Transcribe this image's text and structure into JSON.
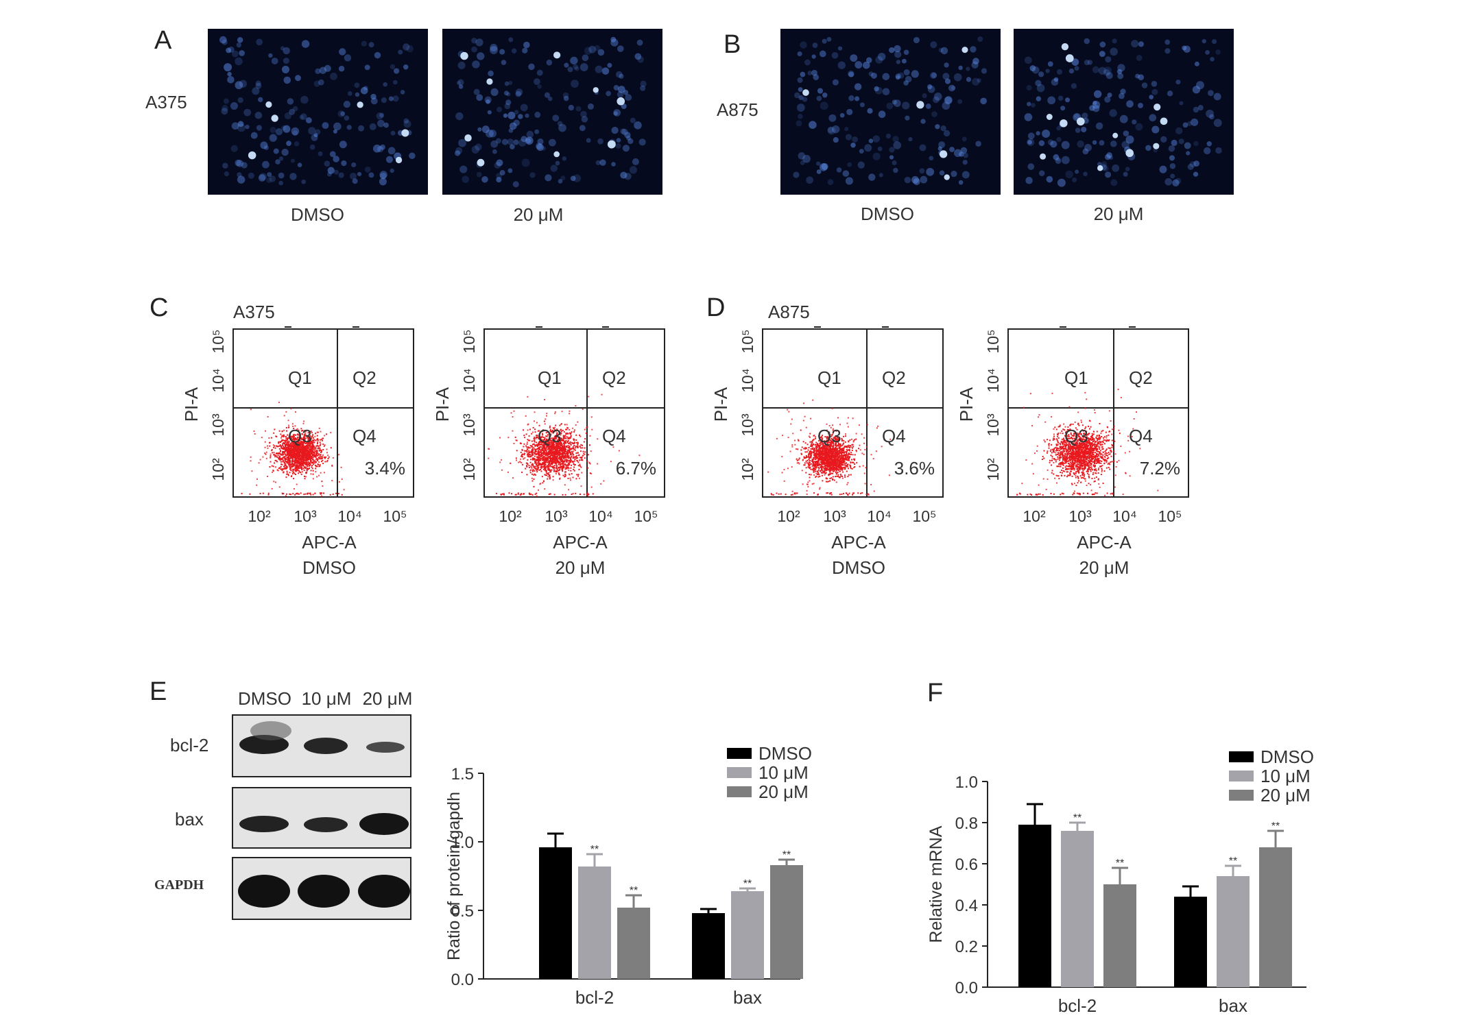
{
  "panels": {
    "A": {
      "label": "A",
      "cell_line": "A375",
      "images": [
        {
          "caption": "DMSO"
        },
        {
          "caption": "20 μM"
        }
      ]
    },
    "B": {
      "label": "B",
      "cell_line": "A875",
      "images": [
        {
          "caption": "DMSO"
        },
        {
          "caption": "20 μM"
        }
      ]
    },
    "C": {
      "label": "C",
      "cell_line": "A375",
      "plots": [
        {
          "condition": "DMSO",
          "q4_percent": "3.4%"
        },
        {
          "condition": "20 μM",
          "q4_percent": "6.7%"
        }
      ]
    },
    "D": {
      "label": "D",
      "cell_line": "A875",
      "plots": [
        {
          "condition": "DMSO",
          "q4_percent": "3.6%"
        },
        {
          "condition": "20 μM",
          "q4_percent": "7.2%"
        }
      ]
    },
    "flow_common": {
      "x_axis_label": "APC-A",
      "y_axis_label": "PI-A",
      "quadrants": [
        "Q1",
        "Q2",
        "Q3",
        "Q4"
      ],
      "x_ticks": [
        "10²",
        "10³",
        "10⁴",
        "10⁵"
      ],
      "y_ticks": [
        "10²",
        "10³",
        "10⁴",
        "10⁵"
      ]
    },
    "E": {
      "label": "E",
      "lanes": [
        "DMSO",
        "10 μM",
        "20 μM"
      ],
      "bands": [
        {
          "name": "bcl-2"
        },
        {
          "name": "bax"
        },
        {
          "name": "GAPDH"
        }
      ]
    },
    "F": {
      "label": "F"
    }
  },
  "colors": {
    "dmso": "#000000",
    "dose10": "#a3a3a9",
    "dose20": "#7e7e7e",
    "flow_dots": "#e8191e",
    "fluorescence": "#5f8ff0"
  },
  "chart_data": [
    {
      "type": "bar",
      "id": "E-chart",
      "categories": [
        "bcl-2",
        "bax"
      ],
      "ylabel": "Ratio of protein/gapdh",
      "ylim": [
        0.0,
        1.5
      ],
      "yticks": [
        "0.0",
        "0.5",
        "1.0",
        "1.5"
      ],
      "legend_position": "top-right",
      "series": [
        {
          "name": "DMSO",
          "values": [
            0.96,
            0.48
          ],
          "errors": [
            0.1,
            0.03
          ],
          "sig": [
            "",
            ""
          ]
        },
        {
          "name": "10 μM",
          "values": [
            0.82,
            0.64
          ],
          "errors": [
            0.09,
            0.02
          ],
          "sig": [
            "**",
            "**"
          ]
        },
        {
          "name": "20 μM",
          "values": [
            0.52,
            0.83
          ],
          "errors": [
            0.09,
            0.04
          ],
          "sig": [
            "**",
            "**"
          ]
        }
      ]
    },
    {
      "type": "bar",
      "id": "F-chart",
      "categories": [
        "bcl-2",
        "bax"
      ],
      "ylabel": "Relative mRNA",
      "ylim": [
        0.0,
        1.0
      ],
      "yticks": [
        "0.0",
        "0.2",
        "0.4",
        "0.6",
        "0.8",
        "1.0"
      ],
      "legend_position": "top-right",
      "series": [
        {
          "name": "DMSO",
          "values": [
            0.79,
            0.44
          ],
          "errors": [
            0.1,
            0.05
          ],
          "sig": [
            "",
            ""
          ]
        },
        {
          "name": "10 μM",
          "values": [
            0.76,
            0.54
          ],
          "errors": [
            0.04,
            0.05
          ],
          "sig": [
            "**",
            "**"
          ]
        },
        {
          "name": "20 μM",
          "values": [
            0.5,
            0.68
          ],
          "errors": [
            0.08,
            0.08
          ],
          "sig": [
            "**",
            "**"
          ]
        }
      ]
    }
  ]
}
